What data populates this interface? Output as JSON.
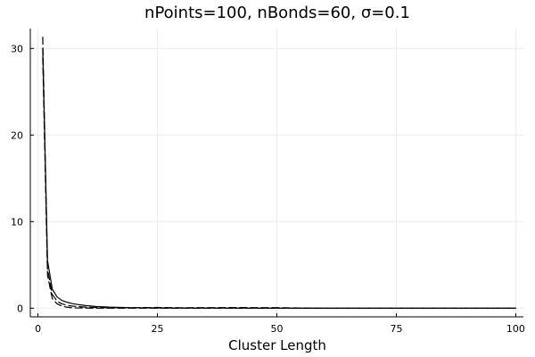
{
  "chart_data": {
    "type": "line",
    "title": "nPoints=100, nBonds=60, σ=0.1",
    "xlabel": "Cluster Length",
    "ylabel": "",
    "xlim": [
      -1.6,
      101.6
    ],
    "ylim": [
      -1.0,
      32.3
    ],
    "xticks": [
      0,
      25,
      50,
      75,
      100
    ],
    "yticks": [
      0,
      10,
      20,
      30
    ],
    "grid": true,
    "legend": "none",
    "colors": {
      "series": "#000000",
      "grid": "#ececec",
      "axis": "#000000",
      "text": "#000000"
    },
    "series": [
      {
        "style": "solid",
        "x": [
          1,
          2,
          3,
          4,
          5,
          6,
          7,
          8,
          10,
          12,
          15,
          20,
          25,
          30,
          40,
          50,
          60,
          70,
          80,
          90,
          100
        ],
        "y": [
          30.0,
          5.5,
          2.2,
          1.3,
          0.9,
          0.7,
          0.55,
          0.45,
          0.3,
          0.2,
          0.12,
          0.05,
          0.03,
          0.02,
          0.01,
          0.0,
          0.0,
          0.0,
          0.0,
          0.0,
          0.0
        ]
      },
      {
        "style": "dashed",
        "x": [
          1,
          2,
          3,
          4,
          5,
          6,
          7,
          8,
          10,
          12,
          15,
          20,
          25,
          30,
          40,
          50,
          52,
          60,
          70,
          80,
          90,
          100
        ],
        "y": [
          31.3,
          4.5,
          1.6,
          0.8,
          0.5,
          0.35,
          0.25,
          0.2,
          0.12,
          0.08,
          0.05,
          0.06,
          0.08,
          0.05,
          0.07,
          0.06,
          0.04,
          0.0,
          0.0,
          0.0,
          0.0,
          0.0
        ]
      },
      {
        "style": "dashed",
        "x": [
          1,
          2,
          3,
          4,
          5,
          6,
          7,
          8,
          10,
          12,
          15,
          20,
          25,
          30,
          40,
          50,
          60,
          70,
          80,
          90,
          100
        ],
        "y": [
          29.0,
          3.8,
          1.1,
          0.5,
          0.25,
          0.12,
          0.06,
          0.03,
          0.02,
          0.0,
          0.0,
          0.0,
          0.0,
          0.0,
          0.0,
          0.0,
          0.0,
          0.0,
          0.0,
          0.0,
          0.0
        ]
      }
    ]
  }
}
